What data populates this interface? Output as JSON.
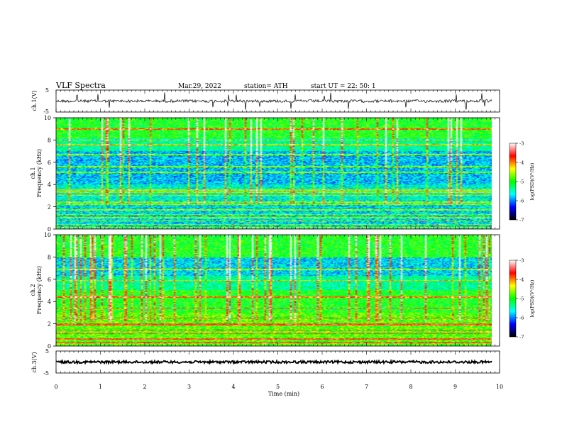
{
  "header": {
    "title": "VLF  Spectra",
    "date": "Mar.29, 2022",
    "station": "station= ATH",
    "start_ut": "start  UT  =    22: 50: 1"
  },
  "chart_data": [
    {
      "type": "line",
      "panel": "ch1-waveform",
      "ylabel": "ch.1(V)",
      "ylim": [
        -5,
        5
      ],
      "yticks": [
        "5",
        "-5"
      ],
      "baseline": 0,
      "trace_color": "#000000"
    },
    {
      "type": "heatmap",
      "panel": "ch1-spectrogram",
      "ylabel_channel": "ch.1",
      "ylabel": "Frequency  (kHz)",
      "ylim": [
        0,
        10
      ],
      "yticks": [
        "0",
        "2",
        "4",
        "6",
        "8",
        "10"
      ],
      "xlim": [
        0,
        9.85
      ],
      "notable_lines_khz": [
        0.1,
        0.4,
        0.7,
        1.0,
        1.3,
        1.7,
        2.2,
        2.4,
        3.0,
        3.3,
        3.5,
        5.1,
        5.6,
        6.7,
        7.6,
        8.0,
        9.0
      ]
    },
    {
      "type": "heatmap",
      "panel": "ch2-spectrogram",
      "ylabel_channel": "ch.2",
      "ylabel": "Frequency  (kHz)",
      "ylim": [
        0,
        10
      ],
      "yticks": [
        "0",
        "2",
        "4",
        "6",
        "8",
        "10"
      ],
      "xlim": [
        0,
        9.85
      ],
      "notable_lines_khz": [
        0.3,
        0.6,
        1.1,
        1.4,
        1.9,
        2.0,
        2.5,
        3.4,
        4.4,
        5.9,
        6.9
      ]
    },
    {
      "type": "line",
      "panel": "ch3-waveform",
      "ylabel": "ch.3(V)",
      "ylim": [
        -5,
        5
      ],
      "yticks": [
        "5",
        "-5"
      ],
      "baseline": 0,
      "trace_color": "#000000"
    }
  ],
  "x_axis": {
    "label": "Time  (min)",
    "range": [
      0,
      10
    ],
    "ticks": [
      "0",
      "1",
      "2",
      "3",
      "4",
      "5",
      "6",
      "7",
      "8",
      "9",
      "10"
    ]
  },
  "colorbars": [
    {
      "label": "log(PSD)(V²/Hz)",
      "range": [
        -7,
        -3
      ],
      "ticks": [
        "-3",
        "-4",
        "-5",
        "-6",
        "-7"
      ],
      "colors": [
        "#ffffff",
        "#ff0000",
        "#ffff00",
        "#00ff00",
        "#00ffff",
        "#0000ff",
        "#000000"
      ]
    },
    {
      "label": "log(PSD)(V²/Hz)",
      "range": [
        -7,
        -3
      ],
      "ticks": [
        "-3",
        "-4",
        "-5",
        "-6",
        "-7"
      ],
      "colors": [
        "#ffffff",
        "#ff0000",
        "#ffff00",
        "#00ff00",
        "#00ffff",
        "#0000ff",
        "#000000"
      ]
    }
  ]
}
